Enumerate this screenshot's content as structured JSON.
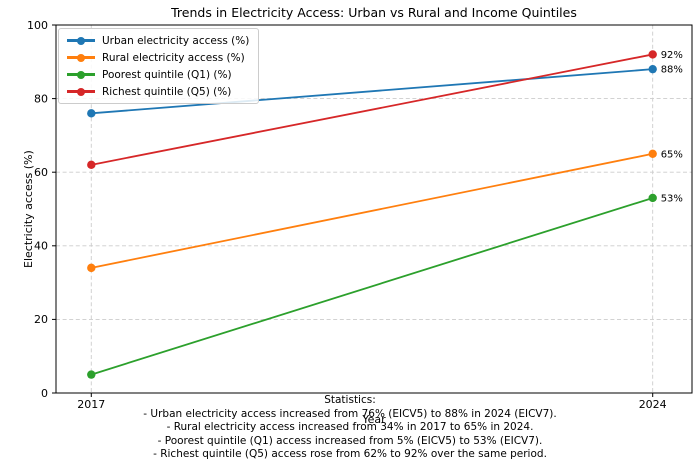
{
  "chart_data": {
    "type": "line",
    "title": "Trends in Electricity Access: Urban vs Rural and Income Quintiles",
    "xlabel": "Year",
    "ylabel": "Electricity access (%)",
    "x": [
      2017,
      2024
    ],
    "xtick_labels": [
      "2017",
      "2024"
    ],
    "yticks": [
      0,
      20,
      40,
      60,
      80,
      100
    ],
    "ylim": [
      0,
      100
    ],
    "xlim": [
      2016.56,
      2024.49
    ],
    "grid": true,
    "grid_style": "dashed",
    "legend_position": "upper left",
    "series": [
      {
        "name": "Urban electricity access (%)",
        "color": "#1f77b4",
        "values": [
          76,
          88
        ],
        "end_label": "88%"
      },
      {
        "name": "Rural electricity access (%)",
        "color": "#ff7f0e",
        "values": [
          34,
          65
        ],
        "end_label": "65%"
      },
      {
        "name": "Poorest quintile (Q1) (%)",
        "color": "#2ca02c",
        "values": [
          5,
          53
        ],
        "end_label": "53%"
      },
      {
        "name": "Richest quintile (Q5) (%)",
        "color": "#d62728",
        "values": [
          62,
          92
        ],
        "end_label": "92%"
      }
    ]
  },
  "stats": {
    "heading": "Statistics:",
    "lines": [
      "- Urban electricity access increased from 76% (EICV5) to 88% in 2024 (EICV7).",
      "- Rural electricity access increased from 34% in 2017 to 65% in 2024.",
      "- Poorest quintile (Q1) access increased from 5% (EICV5) to 53% (EICV7).",
      "- Richest quintile (Q5) access rose from 62% to 92% over the same period."
    ]
  },
  "style": {
    "background": "#ffffff",
    "grid_color": "#cccccc",
    "spine_color": "#000000",
    "text_color": "#000000"
  }
}
